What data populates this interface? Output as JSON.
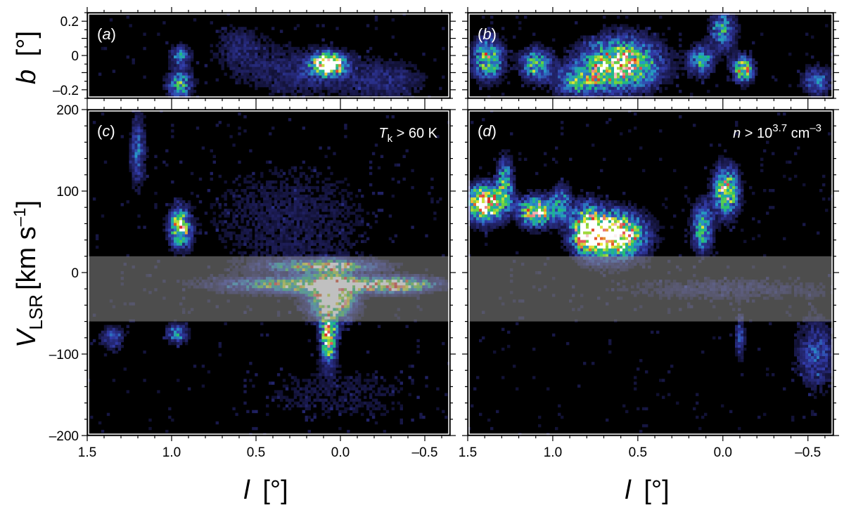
{
  "chart_data": [
    {
      "type": "heatmap",
      "panel": "a",
      "panel_label": "a",
      "condition": "",
      "x_axis": {
        "ticks": [
          1.5,
          1.0,
          0.5,
          0.0,
          -0.5
        ],
        "tick_labels": [
          "1.5",
          "1.0",
          "0.5",
          "0.0",
          "–0.5"
        ],
        "range": [
          1.5,
          -0.65
        ],
        "reversed": true
      },
      "y_axis": {
        "ticks": [
          0.2,
          0,
          -0.2
        ],
        "tick_labels": [
          "0.2",
          "0",
          "–0.2"
        ],
        "range": [
          -0.25,
          0.25
        ]
      },
      "blobs": [
        {
          "l": 0.07,
          "v": -0.05,
          "sl": 0.06,
          "sv": 0.04,
          "a": 1.3
        },
        {
          "l": 0.95,
          "v": -0.17,
          "sl": 0.05,
          "sv": 0.06,
          "a": 0.55
        },
        {
          "l": 0.95,
          "v": 0.0,
          "sl": 0.04,
          "sv": 0.04,
          "a": 0.4
        },
        {
          "l": 0.2,
          "v": -0.1,
          "sl": 0.25,
          "sv": 0.1,
          "a": 0.2
        },
        {
          "l": -0.3,
          "v": -0.15,
          "sl": 0.15,
          "sv": 0.08,
          "a": 0.18
        },
        {
          "l": 0.6,
          "v": 0.05,
          "sl": 0.12,
          "sv": 0.1,
          "a": 0.15
        }
      ]
    },
    {
      "type": "heatmap",
      "panel": "b",
      "panel_label": "b",
      "condition": "",
      "x_axis": {
        "ticks": [
          1.5,
          1.0,
          0.5,
          0.0,
          -0.5
        ],
        "tick_labels": [
          "1.5",
          "1.0",
          "0.5",
          "0.0",
          "–0.5"
        ],
        "range": [
          1.5,
          -0.65
        ],
        "reversed": true
      },
      "y_axis": {
        "ticks": [
          0.2,
          0,
          -0.2
        ],
        "tick_labels": [
          "0.2",
          "0",
          "–0.2"
        ],
        "range": [
          -0.25,
          0.25
        ]
      },
      "blobs": [
        {
          "l": 0.6,
          "v": -0.05,
          "sl": 0.15,
          "sv": 0.1,
          "a": 0.9
        },
        {
          "l": 1.38,
          "v": -0.02,
          "sl": 0.06,
          "sv": 0.08,
          "a": 0.7
        },
        {
          "l": 1.1,
          "v": -0.05,
          "sl": 0.06,
          "sv": 0.06,
          "a": 0.6
        },
        {
          "l": 0.85,
          "v": -0.15,
          "sl": 0.1,
          "sv": 0.06,
          "a": 0.5
        },
        {
          "l": 0.0,
          "v": 0.15,
          "sl": 0.05,
          "sv": 0.08,
          "a": 0.5
        },
        {
          "l": -0.12,
          "v": -0.08,
          "sl": 0.04,
          "sv": 0.05,
          "a": 0.8
        },
        {
          "l": 0.13,
          "v": -0.03,
          "sl": 0.05,
          "sv": 0.06,
          "a": 0.5
        },
        {
          "l": -0.55,
          "v": -0.15,
          "sl": 0.06,
          "sv": 0.06,
          "a": 0.35
        }
      ]
    },
    {
      "type": "heatmap",
      "panel": "c",
      "panel_label": "c",
      "condition": "T_k > 60 K",
      "x_axis": {
        "ticks": [
          1.5,
          1.0,
          0.5,
          0.0,
          -0.5
        ],
        "tick_labels": [
          "1.5",
          "1.0",
          "0.5",
          "0.0",
          "–0.5"
        ],
        "range": [
          1.5,
          -0.65
        ],
        "reversed": true
      },
      "y_axis": {
        "ticks": [
          200,
          100,
          0,
          -100,
          -200
        ],
        "tick_labels": [
          "200",
          "100",
          "0",
          "–100",
          "–200"
        ],
        "range": [
          -200,
          200
        ]
      },
      "shaded_band_vlsr": [
        -60,
        20
      ],
      "blobs": [
        {
          "l": 0.05,
          "v": -30,
          "sl": 0.08,
          "sv": 18,
          "a": 1.3
        },
        {
          "l": 0.1,
          "v": -15,
          "sl": 0.35,
          "sv": 6,
          "a": 0.9
        },
        {
          "l": 0.1,
          "v": 8,
          "sl": 0.2,
          "sv": 5,
          "a": 0.8
        },
        {
          "l": -0.35,
          "v": -15,
          "sl": 0.12,
          "sv": 6,
          "a": 0.7
        },
        {
          "l": 0.07,
          "v": -80,
          "sl": 0.03,
          "sv": 20,
          "a": 0.9
        },
        {
          "l": 0.95,
          "v": 55,
          "sl": 0.04,
          "sv": 15,
          "a": 0.9
        },
        {
          "l": 0.97,
          "v": -75,
          "sl": 0.04,
          "sv": 8,
          "a": 0.5
        },
        {
          "l": 1.2,
          "v": 150,
          "sl": 0.03,
          "sv": 30,
          "a": 0.35
        },
        {
          "l": 0.3,
          "v": 60,
          "sl": 0.4,
          "sv": 60,
          "a": 0.12
        },
        {
          "l": 0.0,
          "v": -150,
          "sl": 0.4,
          "sv": 30,
          "a": 0.1
        },
        {
          "l": 1.35,
          "v": -80,
          "sl": 0.05,
          "sv": 10,
          "a": 0.3
        }
      ]
    },
    {
      "type": "heatmap",
      "panel": "d",
      "panel_label": "d",
      "condition": "n > 10^3.7 cm^-3",
      "x_axis": {
        "ticks": [
          1.5,
          1.0,
          0.5,
          0.0,
          -0.5
        ],
        "tick_labels": [
          "1.5",
          "1.0",
          "0.5",
          "0.0",
          "–0.5"
        ],
        "range": [
          1.5,
          -0.65
        ],
        "reversed": true
      },
      "y_axis": {
        "ticks": [
          200,
          100,
          0,
          -100,
          -200
        ],
        "tick_labels": [
          "200",
          "100",
          "0",
          "–100",
          "–200"
        ],
        "range": [
          -200,
          200
        ]
      },
      "shaded_band_vlsr": [
        -60,
        20
      ],
      "blobs": [
        {
          "l": 0.65,
          "v": 45,
          "sl": 0.12,
          "sv": 18,
          "a": 1.3
        },
        {
          "l": 0.8,
          "v": 55,
          "sl": 0.06,
          "sv": 20,
          "a": 0.7
        },
        {
          "l": 1.4,
          "v": 85,
          "sl": 0.07,
          "sv": 15,
          "a": 1.1
        },
        {
          "l": 1.28,
          "v": 110,
          "sl": 0.03,
          "sv": 20,
          "a": 0.6
        },
        {
          "l": 1.1,
          "v": 75,
          "sl": 0.07,
          "sv": 12,
          "a": 0.9
        },
        {
          "l": 0.95,
          "v": 85,
          "sl": 0.04,
          "sv": 15,
          "a": 0.4
        },
        {
          "l": -0.02,
          "v": 100,
          "sl": 0.05,
          "sv": 20,
          "a": 0.8
        },
        {
          "l": 0.12,
          "v": 55,
          "sl": 0.04,
          "sv": 20,
          "a": 0.6
        },
        {
          "l": -0.55,
          "v": -100,
          "sl": 0.08,
          "sv": 30,
          "a": 0.3
        },
        {
          "l": -0.1,
          "v": -80,
          "sl": 0.02,
          "sv": 20,
          "a": 0.3
        },
        {
          "l": 0.0,
          "v": -20,
          "sl": 0.5,
          "sv": 10,
          "a": 0.15
        }
      ]
    }
  ],
  "labels": {
    "b_axis_var": "b",
    "b_axis_unit": "[°]",
    "v_axis_var": "V",
    "v_axis_sub": "LSR",
    "v_axis_unit": "[km s",
    "v_axis_unit_sup": "–1",
    "v_axis_unit_end": "]",
    "l_axis_var": "l",
    "l_axis_unit": "[°]",
    "cond_c_var": "T",
    "cond_c_sub": "k",
    "cond_c_rest": " > 60 K",
    "cond_d_var": "n",
    "cond_d_rest": " > 10",
    "cond_d_sup": "3.7",
    "cond_d_unit": " cm",
    "cond_d_unit_sup": "–3"
  },
  "colors": {
    "background": "#000000",
    "band": "#8c8c8c",
    "frame": "#ffffff",
    "axes": "#000000"
  }
}
